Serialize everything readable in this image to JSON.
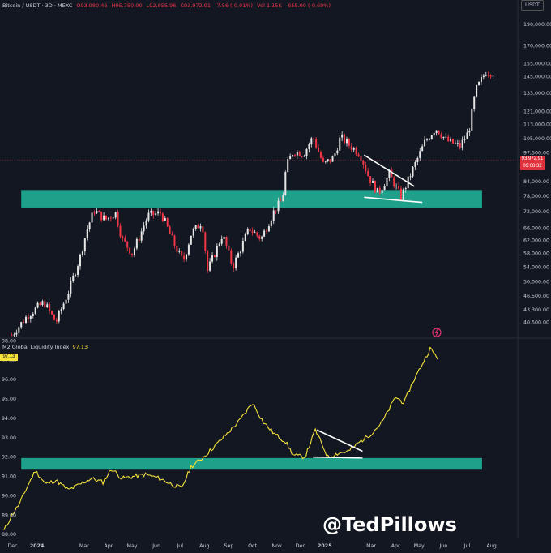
{
  "header": {
    "symbol": "Bitcoin / USDT · 3D · MEXC",
    "open": "O93,980.46",
    "high": "H95,750.00",
    "low": "L92,855.96",
    "close": "C93,972.91",
    "change": "-7.56 (-0.01%)",
    "volume": "Vol 1.15K",
    "vol_change": "-655.09 (-0.69%)"
  },
  "currency_label": "USDT",
  "price_tag": {
    "price": "93,972.91",
    "countdown": "09:08:32"
  },
  "m2_header": {
    "name": "M2 Global Liquidity Index",
    "value": "97.13"
  },
  "m2_tag": "97.13",
  "watermark": "@TedPillows",
  "colors": {
    "background": "#131722",
    "zone": "#1fa08a",
    "up": "#e6e6e6",
    "down": "#f23645",
    "m2_line": "#f5e23b"
  },
  "chart_data": [
    {
      "type": "candlestick",
      "title": "Bitcoin / USDT · 3D · MEXC",
      "y_axis_labels": [
        "190,000.00",
        "170,000.00",
        "155,000.00",
        "145,000.00",
        "133,000.00",
        "121,000.00",
        "113,000.00",
        "105,000.00",
        "97,500.00",
        "84,000.00",
        "78,000.00",
        "72,000.00",
        "66,000.00",
        "62,000.00",
        "58,000.00",
        "54,000.00",
        "50,000.00",
        "46,500.00",
        "43,300.00",
        "40,500.00"
      ],
      "scale": "log",
      "ylim": [
        37500,
        205000
      ],
      "x_range": [
        "2023-11-15",
        "2025-08-20"
      ],
      "current_price": 93972.91,
      "support_zone": {
        "y_low": 73500,
        "y_high": 80500,
        "x_start": "2023-12-12",
        "x_end": "2025-07-20"
      },
      "trendlines": [
        {
          "from": [
            "2025-02-20",
            96500
          ],
          "to": [
            "2025-04-25",
            82000
          ]
        },
        {
          "from": [
            "2025-02-20",
            77500
          ],
          "to": [
            "2025-05-05",
            75500
          ]
        }
      ],
      "points": [
        [
          "2023-11-30",
          37900
        ],
        [
          "2023-12-20",
          42000
        ],
        [
          "2024-01-10",
          45000
        ],
        [
          "2024-01-25",
          40500
        ],
        [
          "2024-02-10",
          47500
        ],
        [
          "2024-02-25",
          57000
        ],
        [
          "2024-03-05",
          66000
        ],
        [
          "2024-03-14",
          72500
        ],
        [
          "2024-03-28",
          69000
        ],
        [
          "2024-04-10",
          71500
        ],
        [
          "2024-04-18",
          62500
        ],
        [
          "2024-05-01",
          58000
        ],
        [
          "2024-05-10",
          63000
        ],
        [
          "2024-05-21",
          70500
        ],
        [
          "2024-06-07",
          71500
        ],
        [
          "2024-06-24",
          60500
        ],
        [
          "2024-07-05",
          55500
        ],
        [
          "2024-07-15",
          64000
        ],
        [
          "2024-07-29",
          68500
        ],
        [
          "2024-08-05",
          53000
        ],
        [
          "2024-08-24",
          64000
        ],
        [
          "2024-09-06",
          54000
        ],
        [
          "2024-09-27",
          66000
        ],
        [
          "2024-10-12",
          62500
        ],
        [
          "2024-10-29",
          72500
        ],
        [
          "2024-11-08",
          76500
        ],
        [
          "2024-11-13",
          91000
        ],
        [
          "2024-11-22",
          98500
        ],
        [
          "2024-12-05",
          97000
        ],
        [
          "2024-12-17",
          106000
        ],
        [
          "2024-12-30",
          92000
        ],
        [
          "2025-01-12",
          95000
        ],
        [
          "2025-01-21",
          106000
        ],
        [
          "2025-01-31",
          102000
        ],
        [
          "2025-02-15",
          97000
        ],
        [
          "2025-02-26",
          86000
        ],
        [
          "2025-03-10",
          79000
        ],
        [
          "2025-03-24",
          87500
        ],
        [
          "2025-04-08",
          77500
        ],
        [
          "2025-04-21",
          88000
        ],
        [
          "2025-05-08",
          103000
        ],
        [
          "2025-05-22",
          111000
        ],
        [
          "2025-06-05",
          104000
        ],
        [
          "2025-06-22",
          101000
        ],
        [
          "2025-07-03",
          109000
        ],
        [
          "2025-07-12",
          135000
        ],
        [
          "2025-07-25",
          149000
        ],
        [
          "2025-08-03",
          148000
        ]
      ]
    },
    {
      "type": "line",
      "title": "M2 Global Liquidity Index",
      "series": [
        {
          "name": "M2 Global Liquidity Index"
        }
      ],
      "y_axis_labels": [
        "98.00",
        "97.00",
        "96.00",
        "95.00",
        "94.00",
        "93.00",
        "92.00",
        "91.00",
        "90.00",
        "89.00",
        "88.00"
      ],
      "ylim": [
        87.8,
        98.1
      ],
      "x_range": [
        "2023-11-15",
        "2025-08-20"
      ],
      "x_ticks": [
        "Dec",
        "2024",
        "Mar",
        "Apr",
        "May",
        "Jun",
        "Jul",
        "Aug",
        "Sep",
        "Oct",
        "Nov",
        "Dec",
        "2025",
        "Mar",
        "Apr",
        "May",
        "Jun",
        "Jul",
        "Aug"
      ],
      "support_zone": {
        "y_low": 91.35,
        "y_high": 91.95,
        "x_start": "2023-12-12",
        "x_end": "2025-07-20"
      },
      "trendlines": [
        {
          "from": [
            "2024-12-22",
            93.4
          ],
          "to": [
            "2025-02-18",
            92.3
          ]
        },
        {
          "from": [
            "2024-12-17",
            92.0
          ],
          "to": [
            "2025-02-18",
            91.95
          ]
        }
      ],
      "points": [
        [
          "2023-11-20",
          88.2
        ],
        [
          "2023-11-30",
          89.0
        ],
        [
          "2023-12-10",
          89.6
        ],
        [
          "2023-12-20",
          90.5
        ],
        [
          "2023-12-30",
          91.3
        ],
        [
          "2024-01-12",
          90.6
        ],
        [
          "2024-01-25",
          90.8
        ],
        [
          "2024-02-10",
          90.3
        ],
        [
          "2024-02-25",
          90.6
        ],
        [
          "2024-03-10",
          90.9
        ],
        [
          "2024-03-25",
          90.7
        ],
        [
          "2024-04-05",
          91.4
        ],
        [
          "2024-04-18",
          90.9
        ],
        [
          "2024-05-03",
          91.0
        ],
        [
          "2024-05-18",
          91.1
        ],
        [
          "2024-06-05",
          90.9
        ],
        [
          "2024-06-20",
          90.6
        ],
        [
          "2024-07-03",
          90.4
        ],
        [
          "2024-07-15",
          91.5
        ],
        [
          "2024-07-28",
          91.9
        ],
        [
          "2024-08-15",
          92.6
        ],
        [
          "2024-09-01",
          93.3
        ],
        [
          "2024-09-15",
          93.9
        ],
        [
          "2024-10-01",
          94.8
        ],
        [
          "2024-10-15",
          93.8
        ],
        [
          "2024-10-29",
          93.2
        ],
        [
          "2024-11-12",
          92.8
        ],
        [
          "2024-11-22",
          92.1
        ],
        [
          "2024-12-07",
          92.0
        ],
        [
          "2024-12-20",
          93.4
        ],
        [
          "2025-01-05",
          92.0
        ],
        [
          "2025-01-18",
          92.2
        ],
        [
          "2025-01-31",
          92.3
        ],
        [
          "2025-02-15",
          92.8
        ],
        [
          "2025-03-01",
          93.2
        ],
        [
          "2025-03-15",
          93.8
        ],
        [
          "2025-04-01",
          95.1
        ],
        [
          "2025-04-12",
          94.8
        ],
        [
          "2025-04-22",
          95.8
        ],
        [
          "2025-05-05",
          96.8
        ],
        [
          "2025-05-15",
          97.6
        ],
        [
          "2025-05-25",
          97.1
        ]
      ]
    }
  ]
}
